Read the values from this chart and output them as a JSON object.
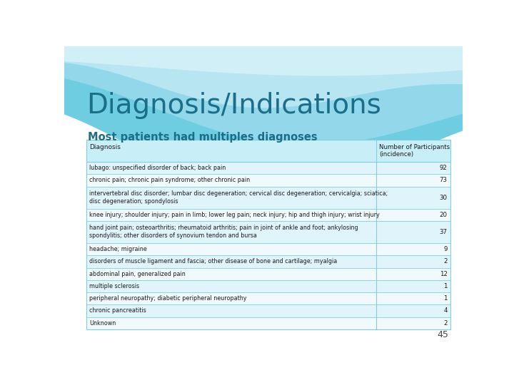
{
  "title": "Diagnosis/Indications",
  "subtitle": "Most patients had multiples diagnoses",
  "col_header_1": "Diagnosis",
  "col_header_2": "Number of Participants\n(incidence)",
  "rows": [
    [
      "lubago: unspecified disorder of back; back pain",
      "92"
    ],
    [
      "chronic pain; chronic pain syndrome; other chronic pain",
      "73"
    ],
    [
      "intervertebral disc disorder; lumbar disc degeneration; cervical disc degeneration; cervicalgia; sciatica;\ndisc degeneration; spondylosis",
      "30"
    ],
    [
      "knee injury; shoulder injury; pain in limb; lower leg pain; neck injury; hip and thigh injury; wrist injury",
      "20"
    ],
    [
      "hand joint pain; osteoarthritis; rheumatoid arthritis; pain in joint of ankle and foot; ankylosing\nspondylitis; other disorders of synovium tendon and bursa",
      "37"
    ],
    [
      "headache; migraine",
      "9"
    ],
    [
      "disorders of muscle ligament and fascia; other disease of bone and cartilage; myalgia",
      "2"
    ],
    [
      "abdominal pain, generalized pain",
      "12"
    ],
    [
      "multiple sclerosis",
      "1"
    ],
    [
      "peripheral neuropathy; diabetic peripheral neuropathy",
      "1"
    ],
    [
      "chronic pancreatitis",
      "4"
    ],
    [
      "Unknown",
      "2"
    ]
  ],
  "page_number": "45",
  "bg_color": "#ffffff",
  "title_color": "#1a6e8a",
  "subtitle_color": "#1a6e8a",
  "table_header_bg": "#c8eef8",
  "table_border_color": "#7ecfe0",
  "row_even_bg": "#e0f4fb",
  "row_odd_bg": "#f0fafd",
  "text_color": "#1a1a1a",
  "header_text_color": "#1a1a1a",
  "wave1_color": "#5ec8de",
  "wave2_color": "#a8dff0",
  "wave3_color": "#d0f0f8",
  "wave4_color": "#e8f8fc"
}
